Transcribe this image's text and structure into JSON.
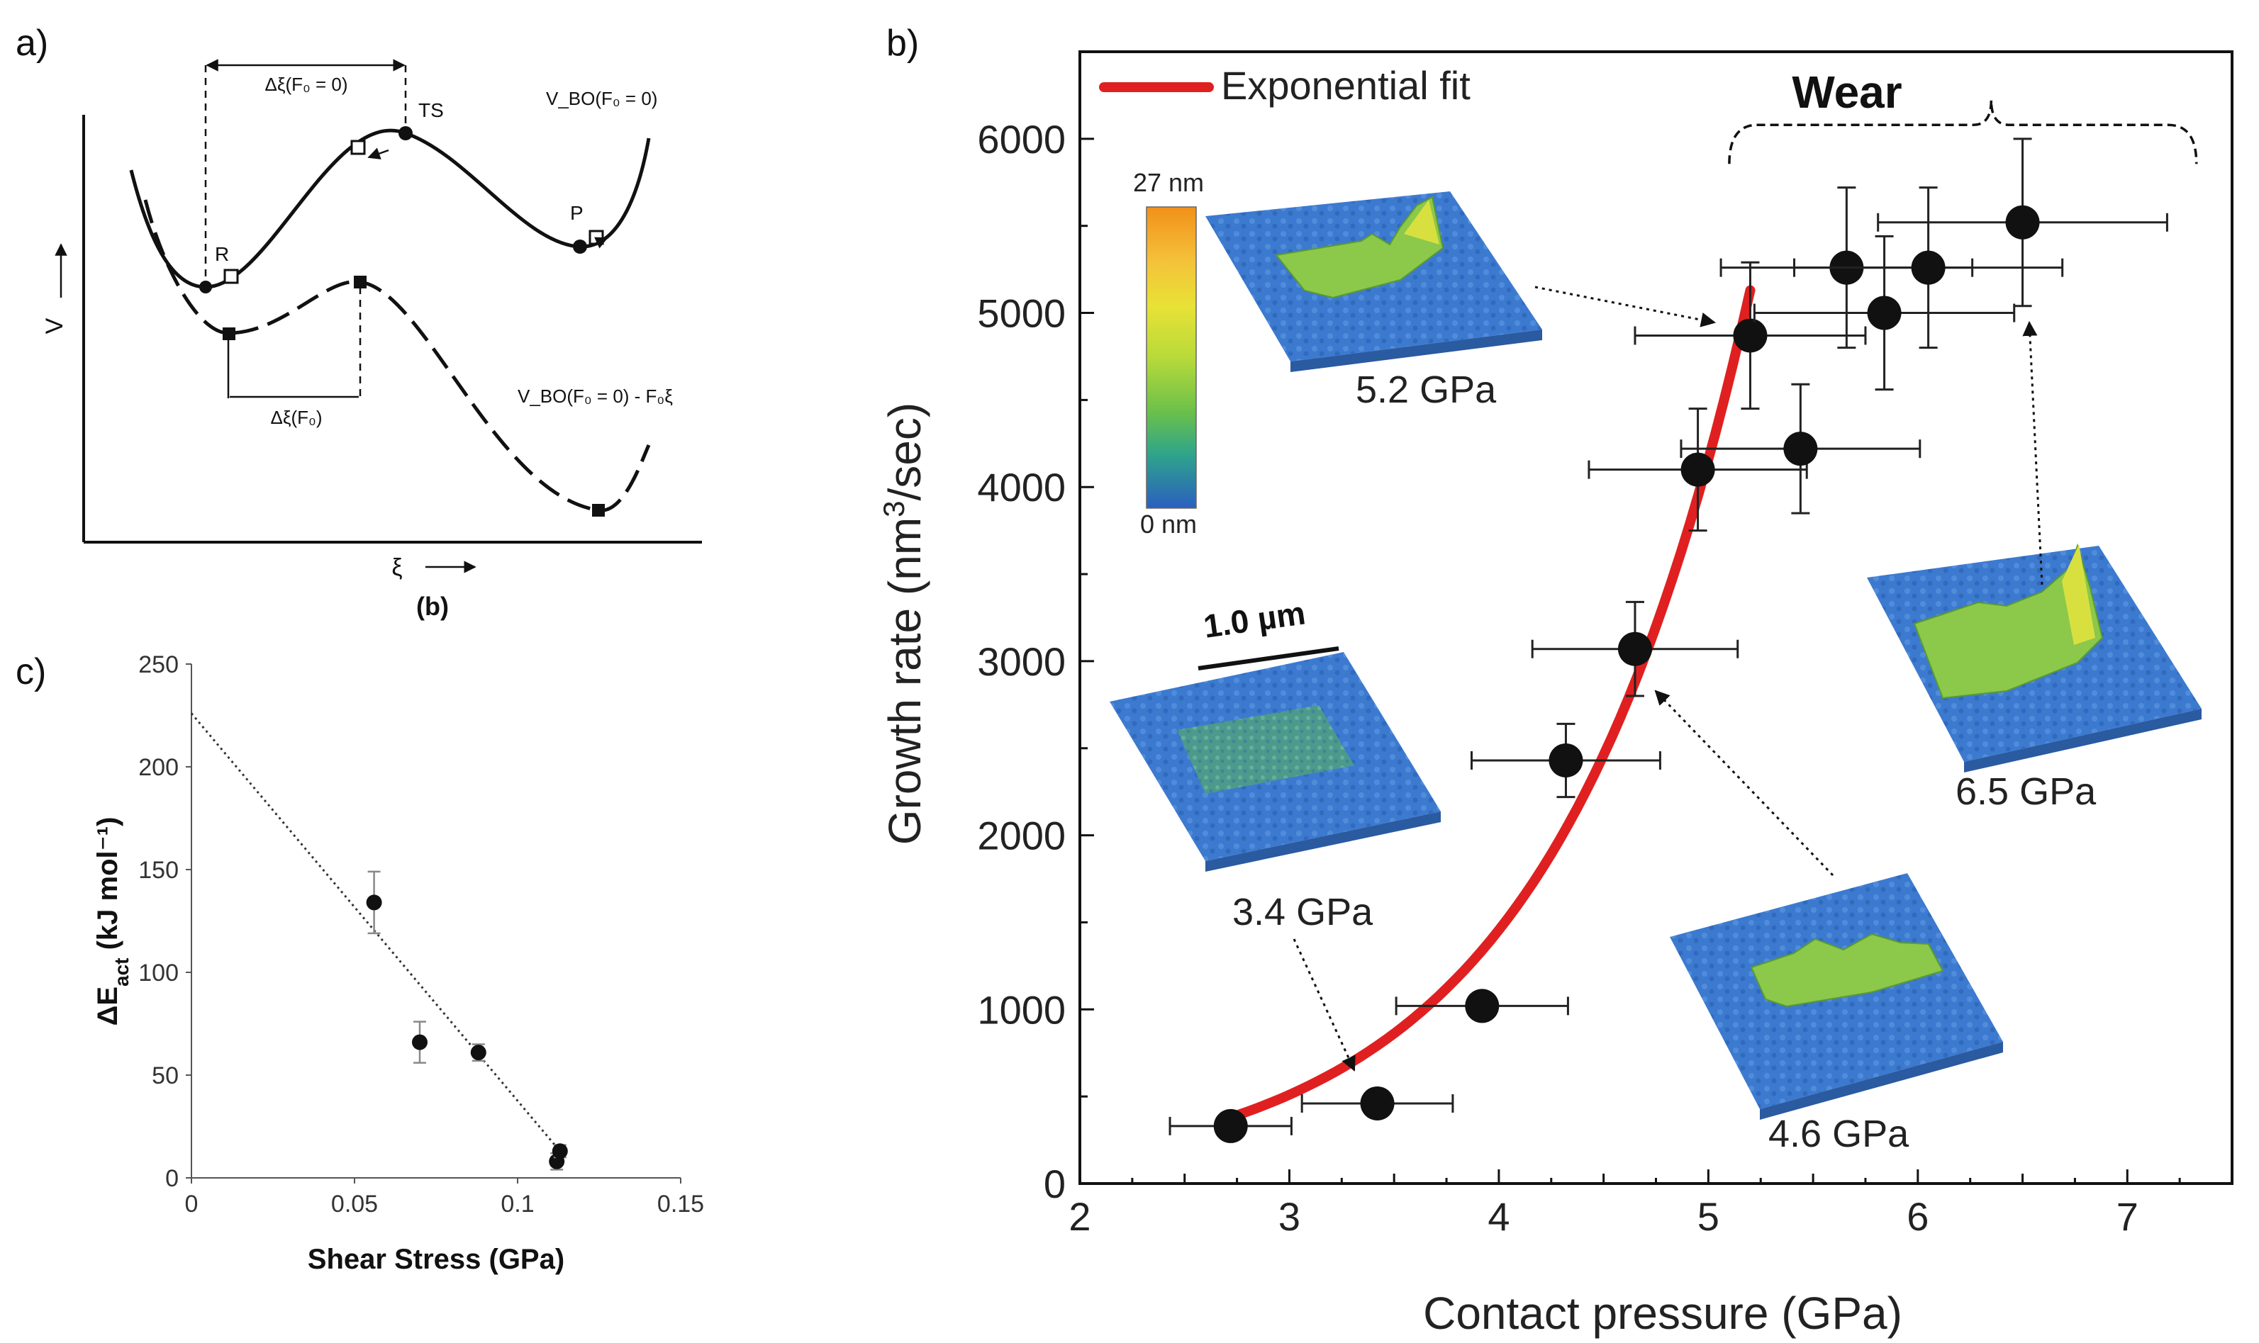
{
  "panel_a": {
    "label": "a)",
    "caption": "(b)",
    "y_axis_label": "V",
    "x_axis_label": "ξ",
    "delta_top": "Δξ(F₀ = 0)",
    "delta_bottom": "Δξ(F₀)",
    "curve_top_label": "V_BO(F₀ = 0)",
    "curve_bottom_label": "V_BO(F₀ = 0) - F₀ξ",
    "point_R": "R",
    "point_TS": "TS",
    "point_P": "P"
  },
  "panel_c": {
    "label": "c)"
  },
  "panel_b": {
    "label": "b)",
    "legend_label": "Exponential fit",
    "wear_label": "Wear",
    "colorbar_top": "27 nm",
    "colorbar_bottom": "0 nm",
    "scale_bar": "1.0 µm",
    "inset_labels": [
      "5.2 GPa",
      "3.4 GPa",
      "6.5 GPa",
      "4.6 GPa"
    ]
  },
  "colors": {
    "fit_line": "#e02020",
    "marker": "#111111",
    "afm_base": "#3a78c8",
    "afm_high": "#d6e636"
  },
  "chart_data": [
    {
      "id": "panel_c",
      "type": "scatter",
      "title": "",
      "xlabel": "Shear Stress (GPa)",
      "ylabel": "ΔE",
      "ylabel_sub": "act",
      "ylabel_rest": " (kJ mol⁻¹)",
      "xlim": [
        0,
        0.15
      ],
      "ylim": [
        0,
        250
      ],
      "xticks": [
        0,
        0.05,
        0.1,
        0.15
      ],
      "xtick_labels": [
        "0",
        "0.05",
        "0.1",
        "0.15"
      ],
      "yticks": [
        0,
        50,
        100,
        150,
        200,
        250
      ],
      "ytick_labels": [
        "0",
        "50",
        "100",
        "150",
        "200",
        "250"
      ],
      "points": [
        {
          "x": 0.056,
          "y": 134,
          "err": 15
        },
        {
          "x": 0.07,
          "y": 66,
          "err": 10
        },
        {
          "x": 0.088,
          "y": 61,
          "err": 4
        },
        {
          "x": 0.112,
          "y": 8,
          "err": 4
        },
        {
          "x": 0.113,
          "y": 13,
          "err": 3
        }
      ],
      "trendline": {
        "x": [
          0,
          0.113
        ],
        "y": [
          226,
          13
        ]
      }
    },
    {
      "id": "panel_b",
      "type": "scatter",
      "title": "",
      "xlabel": "Contact pressure (GPa)",
      "ylabel": "Growth rate (nm",
      "ylabel_sup": "3",
      "ylabel_rest": "/sec)",
      "xlim": [
        2,
        7.5
      ],
      "ylim": [
        0,
        6500
      ],
      "xticks": [
        2,
        3,
        4,
        5,
        6,
        7
      ],
      "xtick_labels": [
        "2",
        "3",
        "4",
        "5",
        "6",
        "7"
      ],
      "yticks": [
        0,
        1000,
        2000,
        3000,
        4000,
        5000,
        6000
      ],
      "ytick_labels": [
        "0",
        "1000",
        "2000",
        "3000",
        "4000",
        "5000",
        "6000"
      ],
      "points": [
        {
          "x": 2.72,
          "y": 330,
          "xerr": 0.29,
          "yerr": 0
        },
        {
          "x": 3.42,
          "y": 460,
          "xerr": 0.36,
          "yerr": 0
        },
        {
          "x": 3.92,
          "y": 1020,
          "xerr": 0.41,
          "yerr": 0
        },
        {
          "x": 4.32,
          "y": 2430,
          "xerr": 0.45,
          "yerr": 210
        },
        {
          "x": 4.65,
          "y": 3070,
          "xerr": 0.49,
          "yerr": 270
        },
        {
          "x": 4.95,
          "y": 4100,
          "xerr": 0.52,
          "yerr": 350
        },
        {
          "x": 5.2,
          "y": 4870,
          "xerr": 0.55,
          "yerr": 420
        },
        {
          "x": 5.44,
          "y": 4220,
          "xerr": 0.57,
          "yerr": 370
        },
        {
          "x": 5.66,
          "y": 5260,
          "xerr": 0.6,
          "yerr": 460
        },
        {
          "x": 5.84,
          "y": 5000,
          "xerr": 0.62,
          "yerr": 440
        },
        {
          "x": 6.05,
          "y": 5260,
          "xerr": 0.64,
          "yerr": 460
        },
        {
          "x": 6.5,
          "y": 5520,
          "xerr": 0.69,
          "yerr": 480
        }
      ],
      "fit": {
        "type": "exponential",
        "x_start": 2.72,
        "x_end": 5.2,
        "y_start": 380,
        "y_end": 5130
      },
      "wear_bracket": {
        "x_start": 5.1,
        "x_end": 7.33,
        "y": 6080
      }
    }
  ]
}
